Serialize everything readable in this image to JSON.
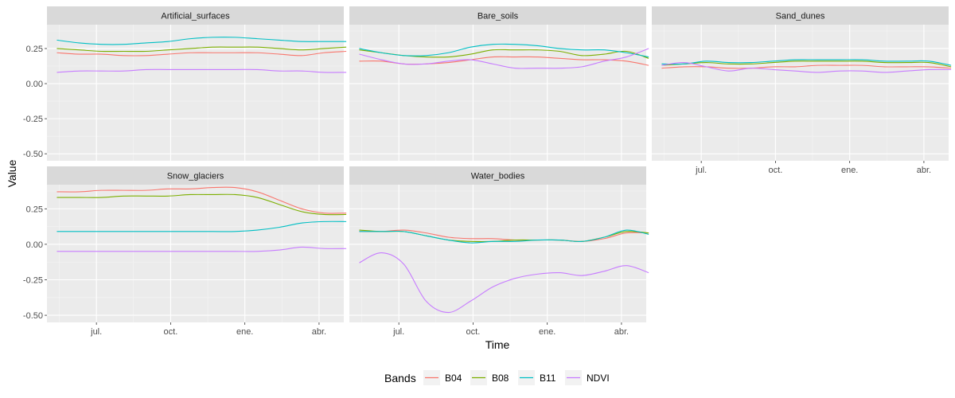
{
  "chart_data": {
    "type": "line",
    "title": "",
    "xlabel": "Time",
    "ylabel": "Value",
    "ylim": [
      -0.55,
      0.42
    ],
    "xlim": [
      0,
      12
    ],
    "x_unit": "month index from May",
    "y_ticks": [
      {
        "value": -0.5,
        "label": "-0.50"
      },
      {
        "value": -0.25,
        "label": "-0.25"
      },
      {
        "value": 0,
        "label": "0.00"
      },
      {
        "value": 0.25,
        "label": "0.25"
      }
    ],
    "x_ticks": [
      {
        "value": 2,
        "label": "jul."
      },
      {
        "value": 5,
        "label": "oct."
      },
      {
        "value": 8,
        "label": "ene."
      },
      {
        "value": 11,
        "label": "abr."
      }
    ],
    "x_minor_ticks": [
      0.5,
      3.5,
      6.5,
      9.5
    ],
    "grid": true,
    "legend": {
      "title": "Bands",
      "position": "bottom"
    },
    "bands": [
      {
        "name": "B04",
        "color": "#F8766D"
      },
      {
        "name": "B08",
        "color": "#7CAE00"
      },
      {
        "name": "B11",
        "color": "#00BFC4"
      },
      {
        "name": "NDVI",
        "color": "#C77CFF"
      }
    ],
    "x": [
      0.4,
      1.3,
      2.2,
      3.1,
      4.0,
      4.9,
      5.8,
      6.7,
      7.6,
      8.5,
      9.4,
      10.3,
      11.2,
      12.1
    ],
    "facets": [
      {
        "name": "Artificial_surfaces",
        "series": [
          {
            "band": "B04",
            "values": [
              0.22,
              0.21,
              0.21,
              0.2,
              0.2,
              0.21,
              0.22,
              0.22,
              0.22,
              0.22,
              0.21,
              0.2,
              0.22,
              0.23
            ]
          },
          {
            "band": "B08",
            "values": [
              0.25,
              0.24,
              0.23,
              0.23,
              0.23,
              0.24,
              0.25,
              0.26,
              0.26,
              0.26,
              0.25,
              0.24,
              0.25,
              0.26
            ]
          },
          {
            "band": "B11",
            "values": [
              0.31,
              0.29,
              0.28,
              0.28,
              0.29,
              0.3,
              0.32,
              0.33,
              0.33,
              0.32,
              0.31,
              0.3,
              0.3,
              0.3
            ]
          },
          {
            "band": "NDVI",
            "values": [
              0.08,
              0.09,
              0.09,
              0.09,
              0.1,
              0.1,
              0.1,
              0.1,
              0.1,
              0.1,
              0.09,
              0.09,
              0.08,
              0.08
            ]
          }
        ]
      },
      {
        "name": "Bare_soils",
        "series": [
          {
            "band": "B04",
            "values": [
              0.16,
              0.16,
              0.14,
              0.14,
              0.15,
              0.17,
              0.19,
              0.19,
              0.19,
              0.18,
              0.17,
              0.17,
              0.16,
              0.13
            ]
          },
          {
            "band": "B08",
            "values": [
              0.24,
              0.22,
              0.2,
              0.19,
              0.19,
              0.21,
              0.24,
              0.24,
              0.24,
              0.23,
              0.2,
              0.21,
              0.23,
              0.18
            ]
          },
          {
            "band": "B11",
            "values": [
              0.25,
              0.22,
              0.2,
              0.2,
              0.22,
              0.26,
              0.28,
              0.28,
              0.27,
              0.25,
              0.24,
              0.24,
              0.22,
              0.19
            ]
          },
          {
            "band": "NDVI",
            "values": [
              0.21,
              0.17,
              0.14,
              0.14,
              0.16,
              0.17,
              0.14,
              0.11,
              0.11,
              0.11,
              0.12,
              0.16,
              0.19,
              0.25
            ]
          }
        ]
      },
      {
        "name": "Sand_dunes",
        "series": [
          {
            "band": "B04",
            "values": [
              0.11,
              0.12,
              0.12,
              0.11,
              0.11,
              0.12,
              0.12,
              0.13,
              0.13,
              0.13,
              0.12,
              0.12,
              0.12,
              0.11
            ]
          },
          {
            "band": "B08",
            "values": [
              0.13,
              0.14,
              0.15,
              0.14,
              0.14,
              0.15,
              0.16,
              0.16,
              0.16,
              0.16,
              0.15,
              0.15,
              0.15,
              0.12
            ]
          },
          {
            "band": "B11",
            "values": [
              0.14,
              0.14,
              0.16,
              0.15,
              0.15,
              0.16,
              0.17,
              0.17,
              0.17,
              0.17,
              0.16,
              0.16,
              0.16,
              0.13
            ]
          },
          {
            "band": "NDVI",
            "values": [
              0.13,
              0.15,
              0.12,
              0.09,
              0.11,
              0.1,
              0.09,
              0.08,
              0.09,
              0.09,
              0.08,
              0.09,
              0.1,
              0.1
            ]
          }
        ]
      },
      {
        "name": "Snow_glaciers",
        "series": [
          {
            "band": "B04",
            "values": [
              0.37,
              0.37,
              0.38,
              0.38,
              0.38,
              0.39,
              0.39,
              0.4,
              0.4,
              0.37,
              0.31,
              0.25,
              0.22,
              0.22
            ]
          },
          {
            "band": "B08",
            "values": [
              0.33,
              0.33,
              0.33,
              0.34,
              0.34,
              0.34,
              0.35,
              0.35,
              0.35,
              0.33,
              0.28,
              0.23,
              0.21,
              0.21
            ]
          },
          {
            "band": "B11",
            "values": [
              0.09,
              0.09,
              0.09,
              0.09,
              0.09,
              0.09,
              0.09,
              0.09,
              0.09,
              0.1,
              0.12,
              0.15,
              0.16,
              0.16
            ]
          },
          {
            "band": "NDVI",
            "values": [
              -0.05,
              -0.05,
              -0.05,
              -0.05,
              -0.05,
              -0.05,
              -0.05,
              -0.05,
              -0.05,
              -0.05,
              -0.04,
              -0.02,
              -0.03,
              -0.03
            ]
          }
        ]
      },
      {
        "name": "Water_bodies",
        "series": [
          {
            "band": "B04",
            "values": [
              0.09,
              0.09,
              0.1,
              0.08,
              0.05,
              0.04,
              0.04,
              0.03,
              0.03,
              0.03,
              0.02,
              0.04,
              0.08,
              0.08
            ]
          },
          {
            "band": "B08",
            "values": [
              0.1,
              0.09,
              0.09,
              0.06,
              0.03,
              0.02,
              0.02,
              0.03,
              0.03,
              0.03,
              0.02,
              0.05,
              0.09,
              0.08
            ]
          },
          {
            "band": "B11",
            "values": [
              0.09,
              0.09,
              0.09,
              0.06,
              0.03,
              0.01,
              0.02,
              0.02,
              0.03,
              0.03,
              0.02,
              0.05,
              0.1,
              0.07
            ]
          },
          {
            "band": "NDVI",
            "values": [
              -0.13,
              -0.06,
              -0.14,
              -0.4,
              -0.48,
              -0.4,
              -0.3,
              -0.24,
              -0.21,
              -0.2,
              -0.22,
              -0.19,
              -0.15,
              -0.2
            ]
          }
        ]
      }
    ]
  }
}
